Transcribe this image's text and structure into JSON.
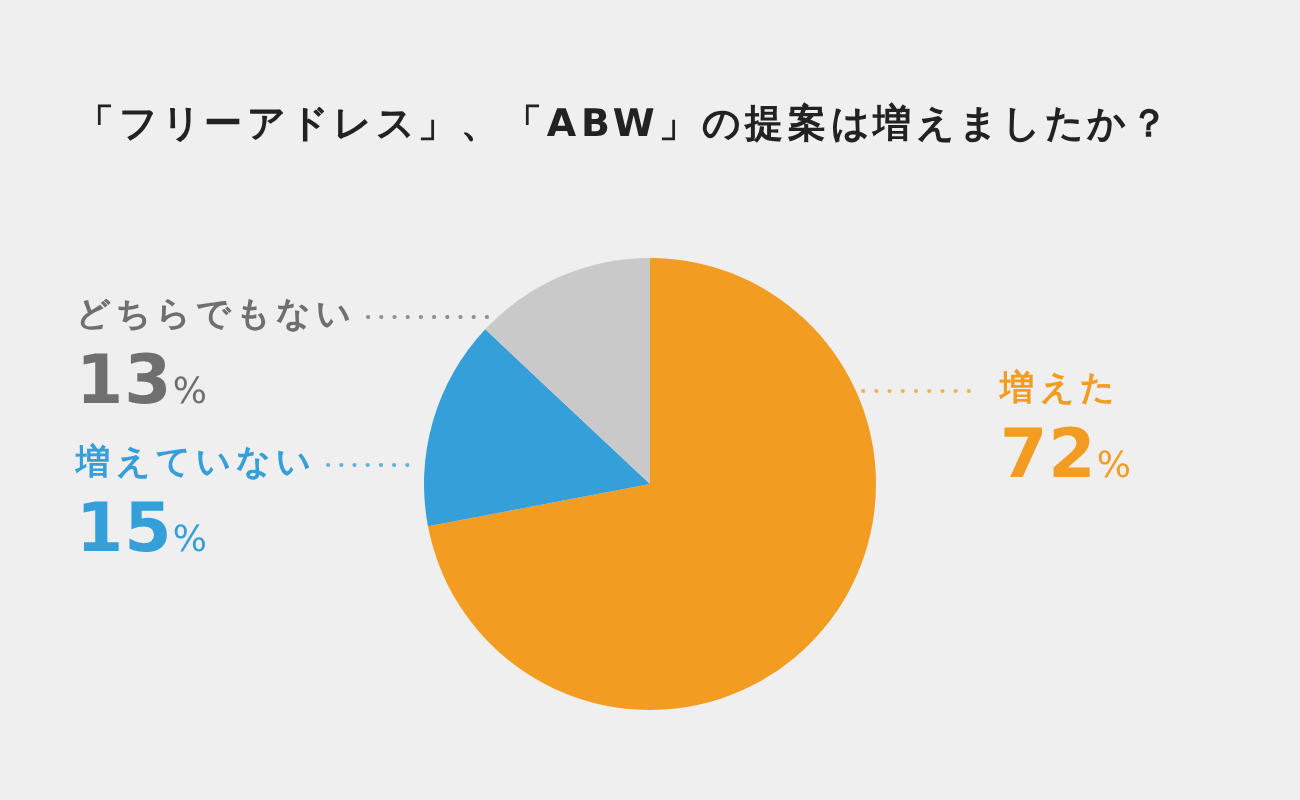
{
  "chart_data": {
    "type": "pie",
    "title": "「フリーアドレス」、「ABW」の提案は増えましたか？",
    "categories": [
      "増えた",
      "増えていない",
      "どちらでもない"
    ],
    "values": [
      72,
      15,
      13
    ],
    "colors": [
      "#f39c22",
      "#359fd9",
      "#c9c9c9"
    ],
    "value_labels": [
      "72%",
      "15%",
      "13%"
    ]
  }
}
